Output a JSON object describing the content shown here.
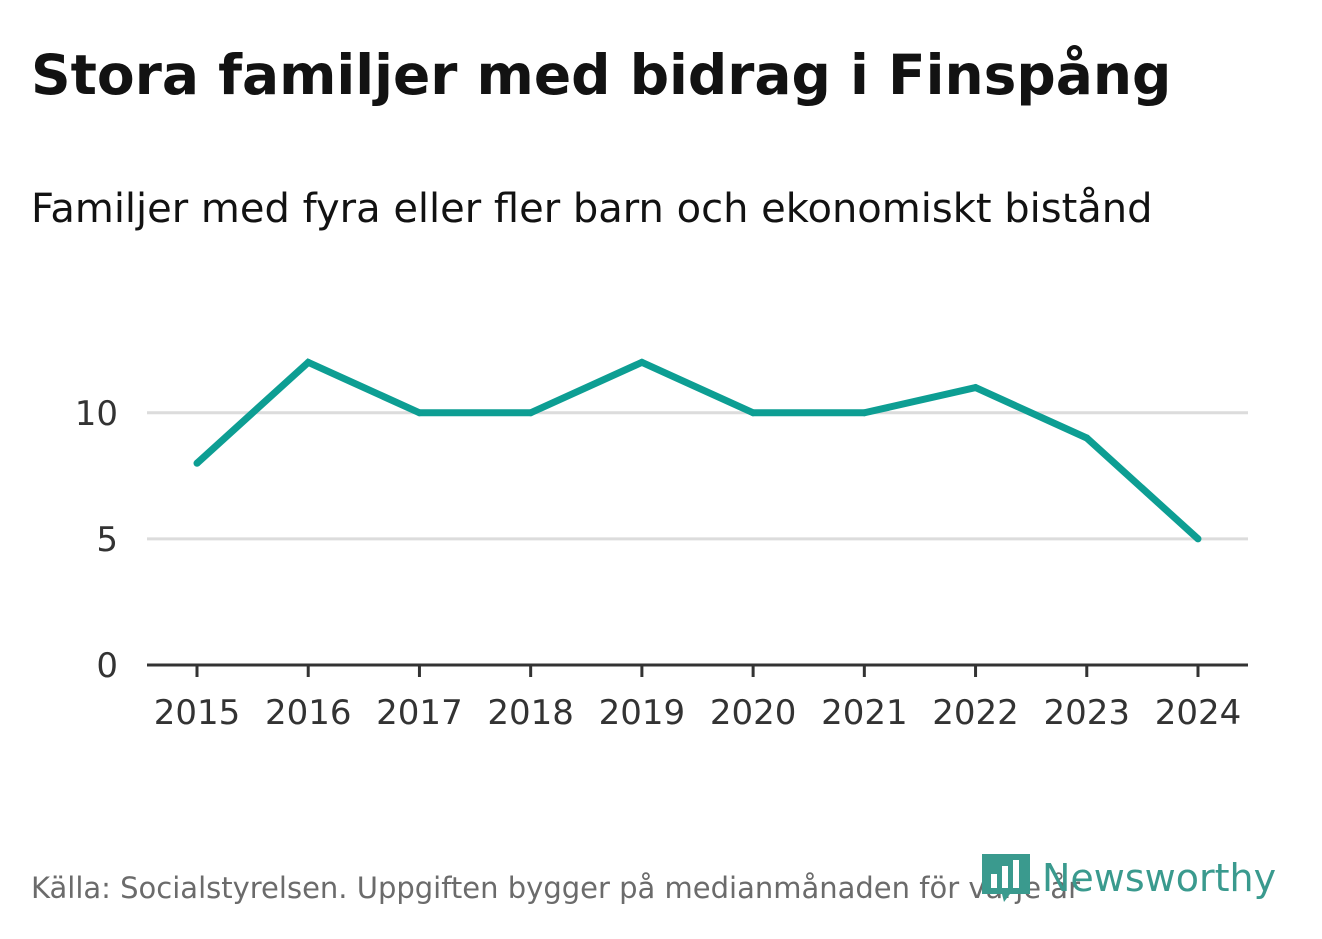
{
  "title": "Stora familjer med bidrag i Finspång",
  "subtitle": "Familjer med fyra eller fler barn och ekonomiskt bistånd",
  "source": "Källa: Socialstyrelsen. Uppgiften bygger på medianmånaden för varje år",
  "brand": {
    "name": "Newsworthy",
    "icon": "newsworthy-logo-icon",
    "color": "#3a9a8e"
  },
  "colors": {
    "line": "#0d9e93",
    "grid": "#dcdcdc",
    "axis": "#333333"
  },
  "chart_data": {
    "type": "line",
    "title": "Stora familjer med bidrag i Finspång",
    "subtitle": "Familjer med fyra eller fler barn och ekonomiskt bistånd",
    "xlabel": "",
    "ylabel": "",
    "categories": [
      "2015",
      "2016",
      "2017",
      "2018",
      "2019",
      "2020",
      "2021",
      "2022",
      "2023",
      "2024"
    ],
    "series": [
      {
        "name": "Familjer med fyra eller fler barn och ekonomiskt bistånd",
        "values": [
          8,
          12,
          10,
          10,
          12,
          10,
          10,
          11,
          9,
          5
        ]
      }
    ],
    "yticks": [
      0,
      5,
      10
    ],
    "ylim": [
      0,
      13.6
    ],
    "grid": true,
    "legend": "none"
  }
}
